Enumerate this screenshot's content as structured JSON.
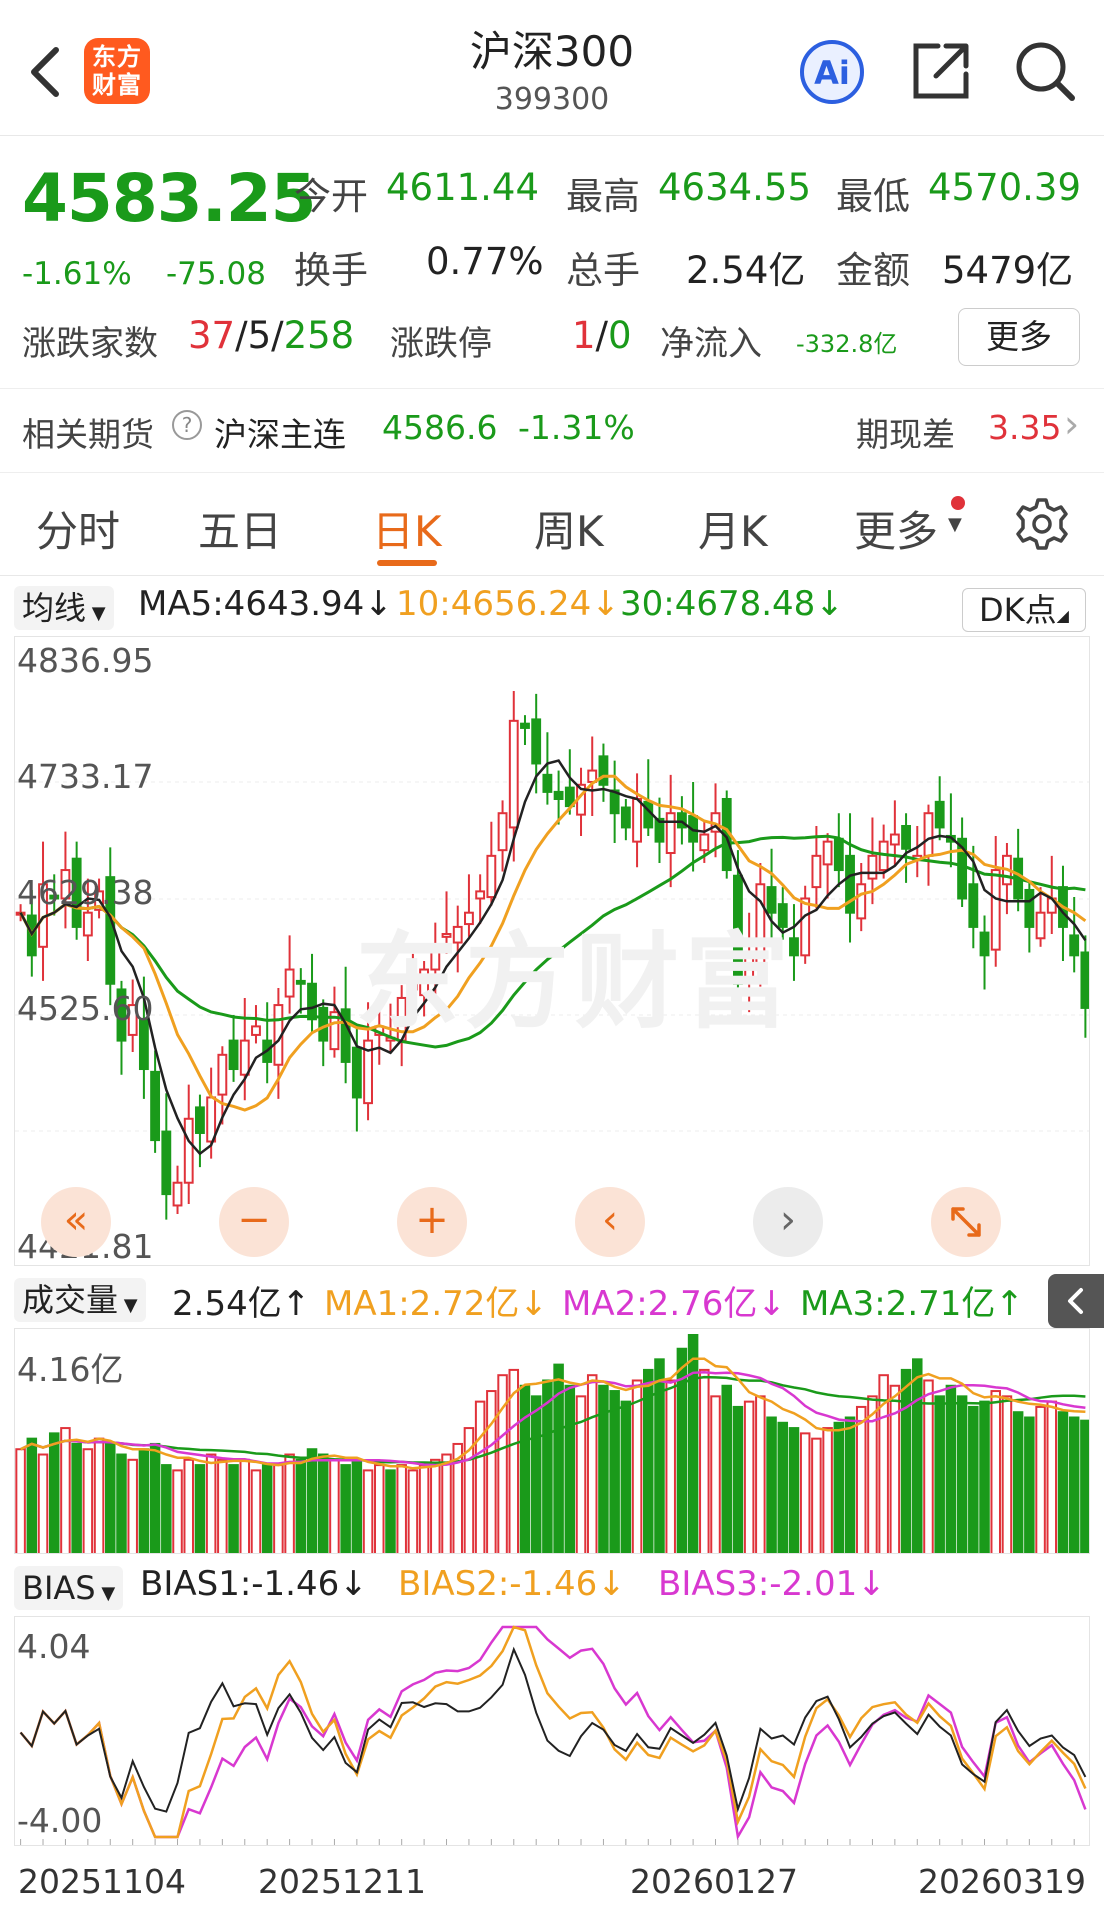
{
  "header": {
    "title": "沪深300",
    "code": "399300",
    "logo_line1": "东方",
    "logo_line2": "财富",
    "ai_label": "Ai"
  },
  "quote": {
    "price": "4583.25",
    "change_pct": "-1.61%",
    "change_abs": "-75.08",
    "open_label": "今开",
    "open": "4611.44",
    "high_label": "最高",
    "high": "4634.55",
    "low_label": "最低",
    "low": "4570.39",
    "turnover_label": "换手",
    "turnover": "0.77%",
    "volume_label": "总手",
    "volume": "2.54亿",
    "amount_label": "金额",
    "amount": "5479亿",
    "breadth_label": "涨跌家数",
    "breadth_up": "37",
    "breadth_flat": "5",
    "breadth_down": "258",
    "sep": "/",
    "limit_label": "涨跌停",
    "limit_up": "1",
    "limit_down": "0",
    "netflow_label": "净流入",
    "netflow": "-332.8亿",
    "more_label": "更多"
  },
  "futures": {
    "label": "相关期货",
    "help": "?",
    "name": "沪深主连",
    "price": "4586.6",
    "pct": "-1.31%",
    "basis_label": "期现差",
    "basis": "3.35",
    "chevron": "›"
  },
  "tabs": [
    "分时",
    "五日",
    "日K",
    "周K",
    "月K",
    "更多"
  ],
  "ma_legend": {
    "selector": "均线",
    "ma5": "MA5:4643.94↓",
    "ma10": "10:4656.24↓",
    "ma30": "30:4678.48↓",
    "dk_label": "DK点"
  },
  "kline_axis": [
    "4836.95",
    "4733.17",
    "4629.38",
    "4525.60",
    "4421.81"
  ],
  "watermark": "东方财富",
  "controls": {
    "rewind": "«",
    "minus": "−",
    "plus": "+",
    "prev": "‹",
    "next": "›"
  },
  "vol_legend": {
    "selector": "成交量",
    "value": "2.54亿↑",
    "ma1": "MA1:2.72亿↓",
    "ma2": "MA2:2.76亿↓",
    "ma3": "MA3:2.71亿↑"
  },
  "vol_axis": [
    "4.16亿"
  ],
  "bias_legend": {
    "selector": "BIAS",
    "bias1": "BIAS1:-1.46↓",
    "bias2": "BIAS2:-1.46↓",
    "bias3": "BIAS3:-2.01↓"
  },
  "bias_axis": [
    "4.04",
    "-4.00"
  ],
  "dates": [
    "20251104",
    "20251211",
    "20260127",
    "20260319"
  ],
  "colors": {
    "up": "#e0323a",
    "down": "#1a9a1a",
    "ma5": "#222222",
    "ma10": "#f0a020",
    "ma30": "#1a9a1a",
    "ma2": "#d838d0",
    "accent": "#e86a1a"
  },
  "chart_data": [
    {
      "type": "candlestick",
      "title": "日K",
      "ylim": [
        4421.81,
        4836.95
      ],
      "yticks": [
        4836.95,
        4733.17,
        4629.38,
        4525.6,
        4421.81
      ],
      "series": [
        {
          "name": "MA5",
          "last": 4643.94
        },
        {
          "name": "10",
          "last": 4656.24
        },
        {
          "name": "30",
          "last": 4678.48
        }
      ],
      "close": [
        4650,
        4620,
        4670,
        4660,
        4680,
        4640,
        4650,
        4665,
        4600,
        4560,
        4585,
        4540,
        4490,
        4452,
        4460,
        4505,
        4495,
        4520,
        4550,
        4540,
        4560,
        4570,
        4545,
        4585,
        4610,
        4600,
        4575,
        4560,
        4580,
        4545,
        4520,
        4560,
        4570,
        4562,
        4590,
        4600,
        4610,
        4625,
        4635,
        4640,
        4650,
        4665,
        4690,
        4720,
        4785,
        4780,
        4755,
        4735,
        4730,
        4725,
        4740,
        4750,
        4740,
        4720,
        4710,
        4730,
        4710,
        4700,
        4720,
        4710,
        4700,
        4705,
        4720,
        4680,
        4600,
        4620,
        4670,
        4650,
        4640,
        4620,
        4660,
        4690,
        4700,
        4680,
        4650,
        4670,
        4690,
        4700,
        4705,
        4695,
        4690,
        4720,
        4710,
        4700,
        4660,
        4640,
        4620,
        4680,
        4690,
        4660,
        4640,
        4650,
        4660,
        4640,
        4620,
        4583
      ]
    },
    {
      "type": "bar",
      "title": "成交量",
      "ylim": [
        0,
        4.16
      ],
      "series": [
        {
          "name": "MA1",
          "last": 2.72
        },
        {
          "name": "MA2",
          "last": 2.76
        },
        {
          "name": "MA3",
          "last": 2.71
        }
      ],
      "values": [
        2.0,
        2.2,
        1.9,
        2.3,
        2.4,
        2.1,
        2.0,
        2.2,
        2.1,
        1.9,
        1.8,
        2.0,
        2.1,
        1.7,
        1.6,
        1.8,
        1.7,
        1.9,
        1.8,
        1.7,
        1.8,
        1.6,
        1.7,
        1.7,
        1.9,
        1.8,
        2.0,
        1.9,
        1.8,
        1.7,
        1.8,
        1.6,
        1.7,
        1.6,
        1.7,
        1.6,
        1.7,
        1.8,
        1.9,
        2.1,
        2.4,
        2.9,
        3.1,
        3.4,
        3.5,
        3.2,
        3.0,
        3.3,
        3.6,
        3.2,
        3.0,
        3.4,
        3.2,
        3.1,
        2.9,
        3.3,
        3.5,
        3.7,
        3.3,
        3.9,
        4.16,
        3.5,
        3.0,
        3.2,
        2.8,
        2.9,
        3.0,
        2.6,
        2.5,
        2.4,
        2.3,
        2.2,
        2.4,
        2.5,
        2.6,
        2.8,
        3.0,
        3.4,
        3.2,
        3.5,
        3.7,
        3.3,
        3.0,
        3.2,
        3.0,
        2.8,
        2.9,
        3.1,
        3.0,
        2.7,
        2.6,
        2.8,
        2.9,
        2.7,
        2.6,
        2.54
      ]
    },
    {
      "type": "line",
      "title": "BIAS",
      "ylim": [
        -4.0,
        4.04
      ],
      "series": [
        {
          "name": "BIAS1",
          "last": -1.46
        },
        {
          "name": "BIAS2",
          "last": -1.46
        },
        {
          "name": "BIAS3",
          "last": -2.01
        }
      ]
    }
  ]
}
